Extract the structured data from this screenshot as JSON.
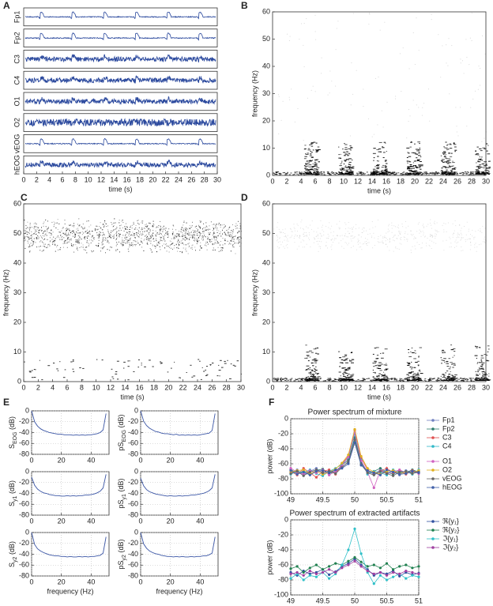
{
  "chart_data": [
    {
      "type": "traces",
      "label": "A",
      "channels": [
        "Fp1",
        "Fp2",
        "C3",
        "C4",
        "O1",
        "O2",
        "vEOG",
        "hEOG"
      ],
      "color": "#2c4a9e",
      "xlabel": "time (s)",
      "xlim": [
        0,
        30
      ],
      "xticks": [
        0,
        2,
        4,
        6,
        8,
        10,
        12,
        14,
        16,
        18,
        20,
        22,
        24,
        26,
        28,
        30
      ]
    },
    {
      "type": "spectrogram",
      "label": "B",
      "xlabel": "time (s)",
      "ylabel": "frequency (Hz)",
      "xlim": [
        0,
        30
      ],
      "ylim": [
        0,
        60
      ],
      "xticks": [
        0,
        2,
        4,
        6,
        8,
        10,
        12,
        14,
        16,
        18,
        20,
        22,
        24,
        26,
        28,
        30
      ],
      "yticks": [
        0,
        10,
        20,
        30,
        40,
        50,
        60
      ]
    },
    {
      "type": "spectrogram",
      "label": "C",
      "xlabel": "time (s)",
      "ylabel": "frequency (Hz)",
      "xlim": [
        0,
        30
      ],
      "ylim": [
        0,
        60
      ],
      "xticks": [
        0,
        2,
        4,
        6,
        8,
        10,
        12,
        14,
        16,
        18,
        20,
        22,
        24,
        26,
        28,
        30
      ],
      "yticks": [
        0,
        10,
        20,
        30,
        40,
        50,
        60
      ]
    },
    {
      "type": "spectrogram",
      "label": "D",
      "xlabel": "time (s)",
      "ylabel": "frequency (Hz)",
      "xlim": [
        0,
        30
      ],
      "ylim": [
        0,
        60
      ],
      "xticks": [
        0,
        2,
        4,
        6,
        8,
        10,
        12,
        14,
        16,
        18,
        20,
        22,
        24,
        26,
        28,
        30
      ],
      "yticks": [
        0,
        10,
        20,
        30,
        40,
        50,
        60
      ]
    },
    {
      "type": "spectra",
      "label": "E",
      "xlabel": "frequency (Hz)",
      "xlim": [
        0,
        52
      ],
      "xticks": [
        0,
        20,
        40
      ],
      "ylim": [
        -80,
        0
      ],
      "yticks": [
        -80,
        -60,
        -40,
        -20,
        0
      ],
      "grid": true,
      "color": "#3a55a5",
      "x": [
        0,
        2,
        4,
        6,
        8,
        10,
        12,
        14,
        16,
        18,
        20,
        22,
        24,
        26,
        28,
        30,
        32,
        34,
        36,
        38,
        40,
        42,
        44,
        46,
        48,
        50
      ],
      "panels": [
        {
          "ylabel": "S",
          "ylabel_sub": "EOG",
          "ylabel_unit": "(dB)",
          "values": [
            0,
            -20,
            -28,
            -33,
            -36,
            -38,
            -40,
            -41,
            -42,
            -43,
            -43,
            -44,
            -44,
            -44,
            -45,
            -44,
            -45,
            -44,
            -45,
            -44,
            -44,
            -43,
            -42,
            -40,
            -35,
            -5
          ]
        },
        {
          "ylabel": "pS",
          "ylabel_sub": "EOG",
          "ylabel_unit": "(dB)",
          "values": [
            0,
            -19,
            -27,
            -32,
            -35,
            -38,
            -39,
            -41,
            -42,
            -42,
            -43,
            -44,
            -43,
            -45,
            -44,
            -45,
            -44,
            -45,
            -44,
            -45,
            -44,
            -43,
            -42,
            -41,
            -36,
            -5
          ]
        },
        {
          "ylabel": "S",
          "ylabel_sub": "y1",
          "ylabel_unit": "(dB)",
          "values": [
            -10,
            -25,
            -32,
            -36,
            -39,
            -40,
            -42,
            -43,
            -44,
            -44,
            -45,
            -45,
            -44,
            -45,
            -44,
            -45,
            -44,
            -44,
            -43,
            -43,
            -42,
            -41,
            -39,
            -36,
            -30,
            -5
          ]
        },
        {
          "ylabel": "pS",
          "ylabel_sub": "y1",
          "ylabel_unit": "(dB)",
          "values": [
            -12,
            -26,
            -33,
            -37,
            -39,
            -41,
            -42,
            -43,
            -44,
            -45,
            -44,
            -45,
            -45,
            -44,
            -45,
            -44,
            -44,
            -43,
            -43,
            -42,
            -41,
            -40,
            -38,
            -35,
            -30,
            -5
          ]
        },
        {
          "ylabel": "S",
          "ylabel_sub": "y2",
          "ylabel_unit": "(dB)",
          "values": [
            0,
            -22,
            -30,
            -34,
            -37,
            -39,
            -41,
            -42,
            -43,
            -43,
            -44,
            -44,
            -45,
            -44,
            -45,
            -45,
            -44,
            -45,
            -44,
            -45,
            -44,
            -44,
            -43,
            -42,
            -38,
            -8
          ]
        },
        {
          "ylabel": "pS",
          "ylabel_sub": "y2",
          "ylabel_unit": "(dB)",
          "values": [
            0,
            -21,
            -29,
            -34,
            -37,
            -39,
            -40,
            -42,
            -43,
            -44,
            -44,
            -45,
            -44,
            -45,
            -44,
            -45,
            -45,
            -44,
            -45,
            -44,
            -44,
            -43,
            -43,
            -41,
            -38,
            -8
          ]
        }
      ]
    },
    {
      "type": "line",
      "label": "F",
      "xlabel": "frequency (Hz)",
      "ylabel": "power (dB)",
      "xlim": [
        49,
        51
      ],
      "xticks": [
        49,
        49.5,
        50,
        50.5,
        51
      ],
      "ylim": [
        -100,
        0
      ],
      "yticks": [
        -100,
        -80,
        -60,
        -40,
        -20,
        0
      ],
      "grid": true,
      "x": [
        49,
        49.1,
        49.2,
        49.3,
        49.4,
        49.5,
        49.6,
        49.7,
        49.8,
        49.9,
        50,
        50.1,
        50.2,
        50.3,
        50.4,
        50.5,
        50.6,
        50.7,
        50.8,
        50.9,
        51
      ],
      "panels": [
        {
          "title": "Power spectrum of mixture",
          "series": [
            {
              "name": "Fp1",
              "color": "#7080c0",
              "values": [
                -72,
                -68,
                -75,
                -70,
                -66,
                -73,
                -69,
                -71,
                -64,
                -58,
                -30,
                -60,
                -70,
                -74,
                -68,
                -72,
                -70,
                -75,
                -69,
                -71,
                -70
              ]
            },
            {
              "name": "Fp2",
              "color": "#2e7d6e",
              "values": [
                -68,
                -72,
                -70,
                -74,
                -69,
                -67,
                -73,
                -70,
                -62,
                -55,
                -25,
                -58,
                -72,
                -70,
                -66,
                -71,
                -74,
                -69,
                -72,
                -68,
                -71
              ]
            },
            {
              "name": "C3",
              "color": "#e05050",
              "values": [
                -70,
                -75,
                -66,
                -72,
                -78,
                -70,
                -68,
                -74,
                -60,
                -50,
                -15,
                -52,
                -68,
                -73,
                -70,
                -66,
                -72,
                -70,
                -74,
                -69,
                -72
              ]
            },
            {
              "name": "C4",
              "color": "#30b8c8",
              "values": [
                -74,
                -70,
                -72,
                -68,
                -73,
                -76,
                -70,
                -66,
                -61,
                -52,
                -20,
                -55,
                -74,
                -70,
                -72,
                -75,
                -68,
                -72,
                -70,
                -74,
                -68
              ]
            },
            {
              "name": "O1",
              "color": "#d060c0",
              "values": [
                -66,
                -71,
                -74,
                -69,
                -72,
                -68,
                -75,
                -70,
                -63,
                -51,
                -18,
                -56,
                -71,
                -92,
                -69,
                -73,
                -71,
                -68,
                -72,
                -70,
                -73
              ]
            },
            {
              "name": "O2",
              "color": "#e0b020",
              "values": [
                -71,
                -69,
                -68,
                -73,
                -70,
                -74,
                -71,
                -67,
                -59,
                -48,
                -14,
                -50,
                -66,
                -71,
                -74,
                -70,
                -69,
                -73,
                -71,
                -72,
                -69
              ]
            },
            {
              "name": "vEOG",
              "color": "#666666",
              "values": [
                -73,
                -70,
                -76,
                -71,
                -68,
                -72,
                -70,
                -73,
                -65,
                -57,
                -28,
                -61,
                -72,
                -75,
                -70,
                -73,
                -76,
                -71,
                -70,
                -73,
                -71
              ]
            },
            {
              "name": "hEOG",
              "color": "#4060a8",
              "values": [
                -69,
                -74,
                -71,
                -75,
                -70,
                -69,
                -72,
                -68,
                -66,
                -60,
                -32,
                -62,
                -69,
                -72,
                -75,
                -68,
                -71,
                -74,
                -73,
                -70,
                -72
              ]
            }
          ]
        },
        {
          "title": "Power spectrum of extracted artifacts",
          "series": [
            {
              "name": "ℜ{y₁}",
              "color": "#3050a0",
              "values": [
                -70,
                -74,
                -68,
                -72,
                -70,
                -66,
                -73,
                -69,
                -62,
                -58,
                -52,
                -60,
                -66,
                -74,
                -70,
                -72,
                -68,
                -75,
                -70,
                -73,
                -71
              ]
            },
            {
              "name": "ℜ{y₂}",
              "color": "#208050",
              "values": [
                -65,
                -62,
                -70,
                -64,
                -60,
                -66,
                -62,
                -58,
                -60,
                -55,
                -50,
                -56,
                -62,
                -60,
                -64,
                -58,
                -66,
                -62,
                -60,
                -64,
                -62
              ]
            },
            {
              "name": "ℑ{y₁}",
              "color": "#30c0c8",
              "values": [
                -78,
                -72,
                -80,
                -74,
                -76,
                -70,
                -78,
                -72,
                -60,
                -40,
                -12,
                -45,
                -70,
                -85,
                -74,
                -80,
                -76,
                -72,
                -78,
                -74,
                -76
              ]
            },
            {
              "name": "ℑ{y₂}",
              "color": "#a040a0",
              "values": [
                -72,
                -70,
                -74,
                -68,
                -72,
                -70,
                -66,
                -70,
                -64,
                -60,
                -55,
                -62,
                -68,
                -72,
                -70,
                -74,
                -70,
                -72,
                -68,
                -70,
                -72
              ]
            }
          ]
        }
      ]
    }
  ]
}
